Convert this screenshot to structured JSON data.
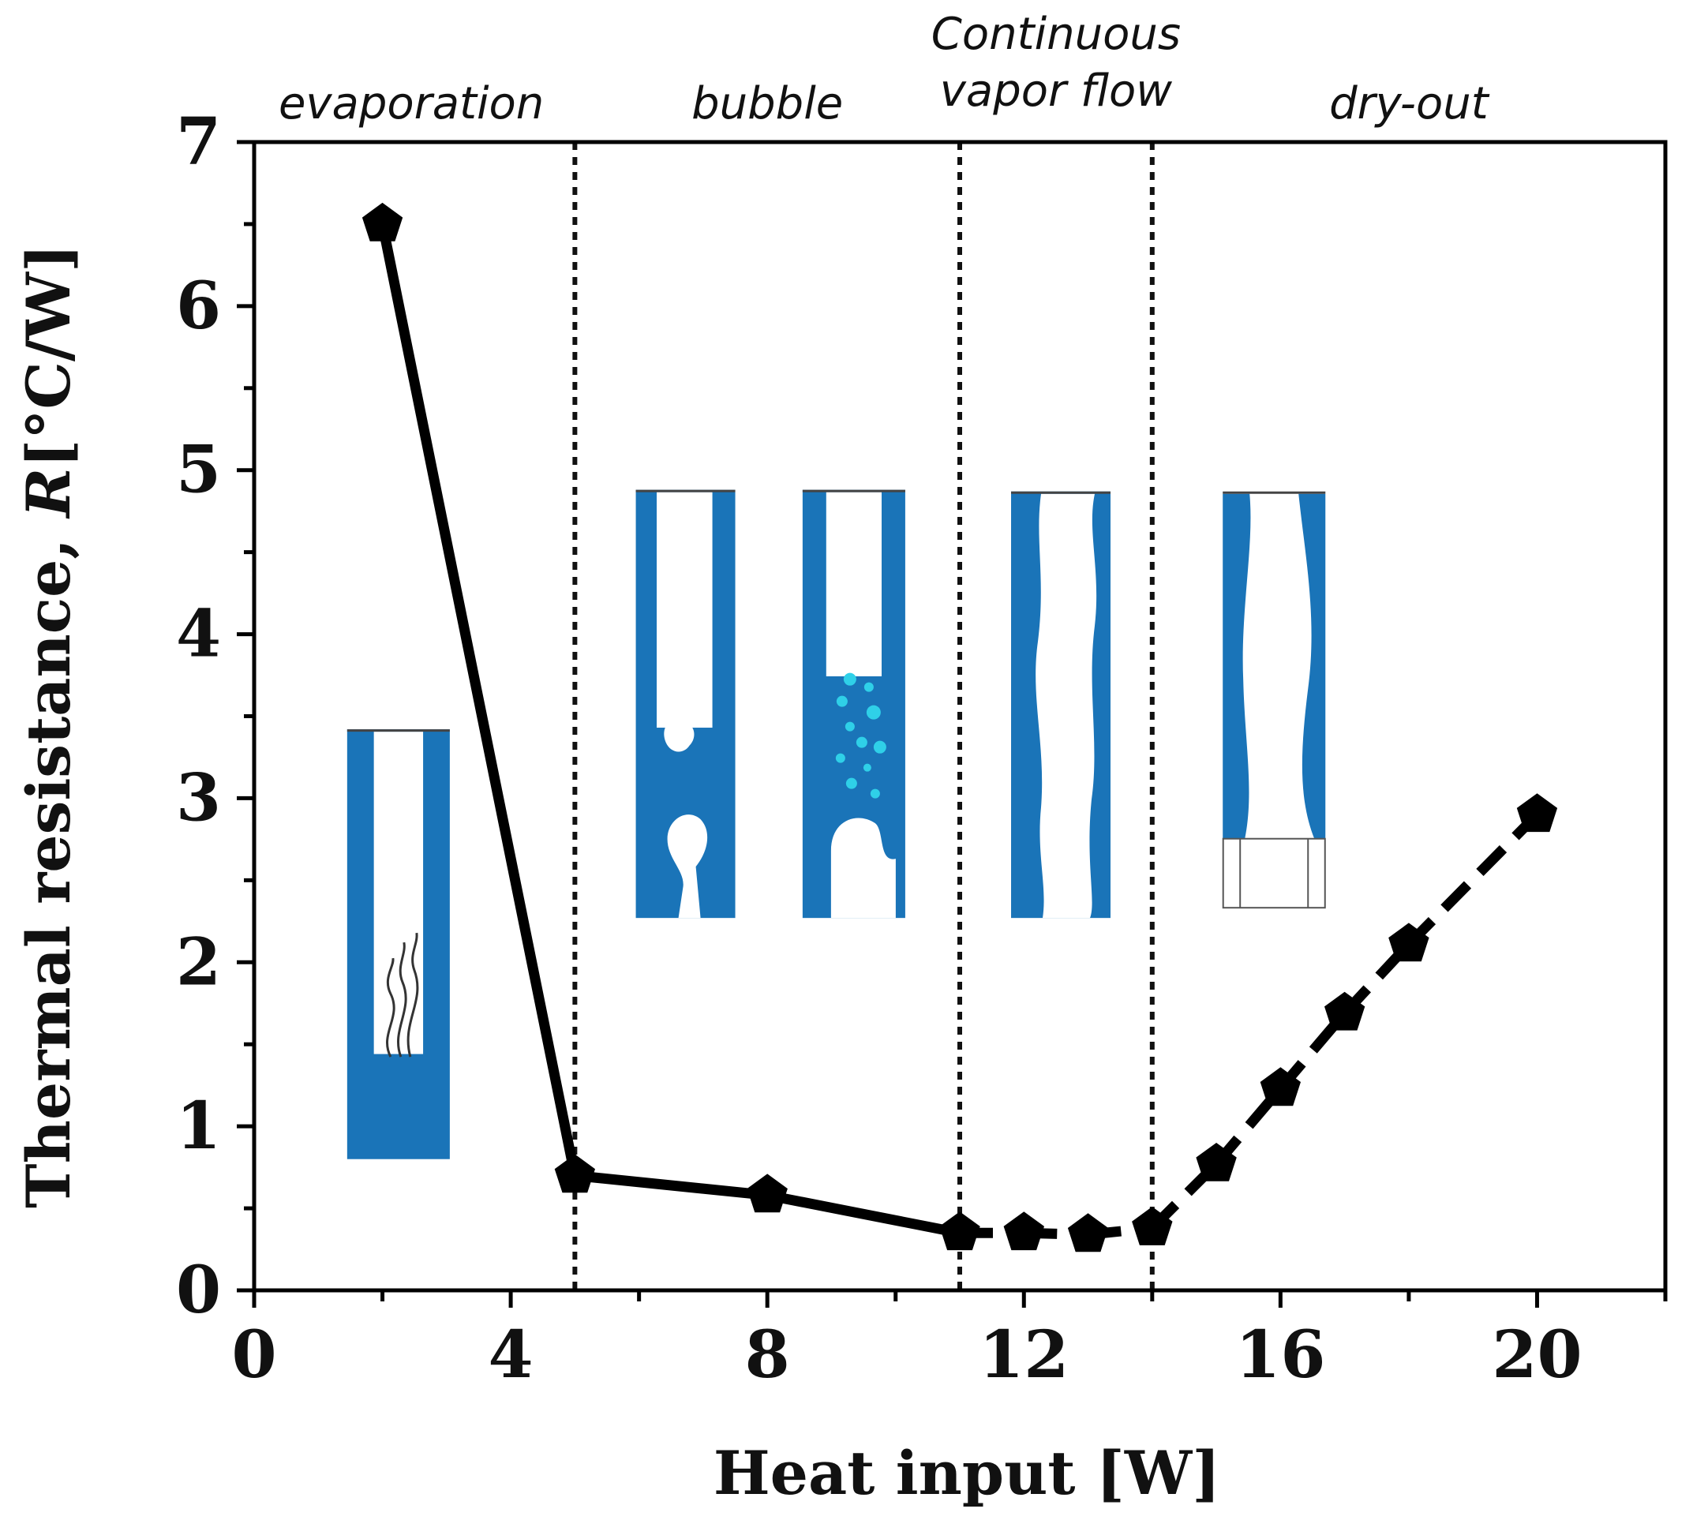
{
  "chart_data": {
    "type": "line",
    "xlabel": "Heat input [W]",
    "ylabel": "Thermal resistance, R[°C/W]",
    "ylabel_parts": {
      "prefix": "Thermal resistance, ",
      "var": "R",
      "suffix": "[°C/W]"
    },
    "xlim": [
      0,
      22
    ],
    "ylim": [
      0,
      7
    ],
    "xticks": [
      0,
      4,
      8,
      12,
      16,
      20
    ],
    "yticks": [
      0,
      1,
      2,
      3,
      4,
      5,
      6,
      7
    ],
    "grid": false,
    "series": [
      {
        "x": [
          2,
          5,
          8,
          11,
          12,
          13,
          14,
          15,
          16,
          17,
          18,
          20
        ],
        "y": [
          6.5,
          0.7,
          0.58,
          0.35,
          0.35,
          0.34,
          0.38,
          0.77,
          1.23,
          1.69,
          2.11,
          2.9
        ],
        "marker": "pentagon",
        "color": "#000000",
        "styles": [
          "solid",
          "solid",
          "solid",
          "dashed",
          "dashed",
          "dashed",
          "dashed",
          "dashed",
          "dashed",
          "dashed",
          "dashed"
        ]
      }
    ],
    "boundaries": [
      5,
      11,
      14
    ],
    "regimes": [
      {
        "lines": [
          "evaporation"
        ],
        "x_center": 2.45
      },
      {
        "lines": [
          "bubble"
        ],
        "x_center": 8.0
      },
      {
        "lines": [
          "Continuous",
          "vapor flow"
        ],
        "x_center": 12.5
      },
      {
        "lines": [
          "dry-out"
        ],
        "x_center": 18.0
      }
    ],
    "insets": [
      {
        "name": "evaporation-illustration",
        "x_range": [
          1.45,
          3.05
        ],
        "y_range": [
          0.8,
          3.42
        ]
      },
      {
        "name": "bubble-illustration-1",
        "x_range": [
          5.95,
          7.5
        ],
        "y_range": [
          2.27,
          4.88
        ]
      },
      {
        "name": "bubble-illustration-2",
        "x_range": [
          8.55,
          10.15
        ],
        "y_range": [
          2.27,
          4.88
        ]
      },
      {
        "name": "vapor-flow-illustration",
        "x_range": [
          11.8,
          13.35
        ],
        "y_range": [
          2.27,
          4.87
        ]
      },
      {
        "name": "dry-out-illustration",
        "x_range": [
          15.1,
          16.7
        ],
        "y_range": [
          2.33,
          4.87
        ]
      }
    ],
    "colors": {
      "fluid": "#1a74b8",
      "bubble": "#2fd0e8",
      "line": "#000000"
    }
  }
}
